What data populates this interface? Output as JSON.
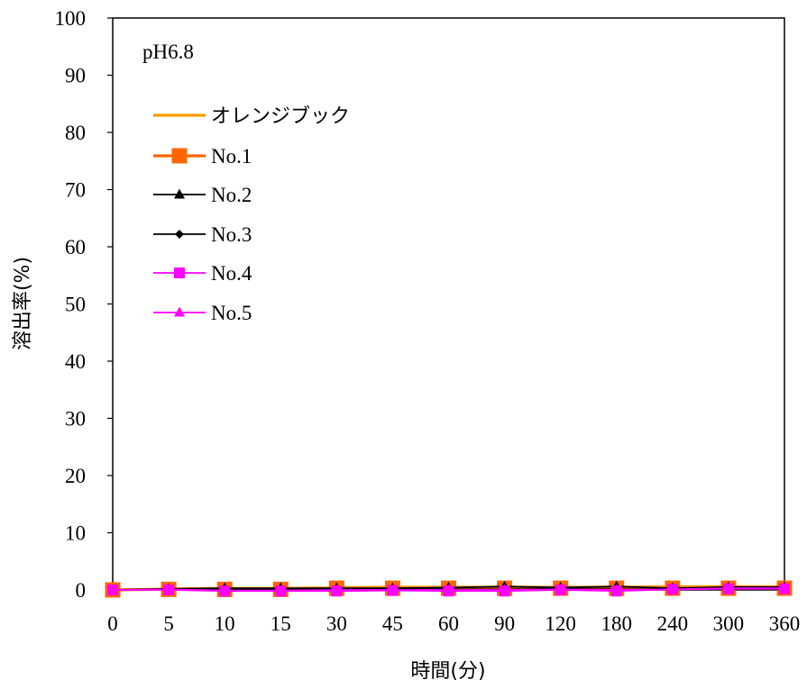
{
  "chart_data": {
    "type": "line",
    "annotation": "pH6.8",
    "xlabel": "時間(分)",
    "ylabel": "溶出率(%)",
    "categories": [
      "0",
      "5",
      "10",
      "15",
      "30",
      "45",
      "60",
      "90",
      "120",
      "180",
      "240",
      "300",
      "360"
    ],
    "y_ticks": [
      "0",
      "10",
      "20",
      "30",
      "40",
      "50",
      "60",
      "70",
      "80",
      "90",
      "100"
    ],
    "ylim": [
      0,
      100
    ],
    "grid": false,
    "legend_position": "top-left",
    "series": [
      {
        "name": "オレンジブック",
        "color": "#FF9900",
        "marker": "none",
        "values": [
          0,
          0.2,
          0.3,
          0.3,
          0.4,
          0.5,
          0.5,
          0.5,
          0.5,
          0.5,
          0.6,
          0.6,
          0.6
        ]
      },
      {
        "name": "No.1",
        "color": "#FF6600",
        "marker": "square-large",
        "values": [
          0,
          0.1,
          0.1,
          0.1,
          0.3,
          0.3,
          0.3,
          0.3,
          0.3,
          0.3,
          0.3,
          0.3,
          0.3
        ]
      },
      {
        "name": "No.2",
        "color": "#000000",
        "marker": "triangle",
        "values": [
          0,
          0.2,
          0.3,
          0.3,
          0.3,
          0.3,
          0.4,
          0.6,
          0.4,
          0.6,
          0.3,
          0.5,
          0.5
        ]
      },
      {
        "name": "No.3",
        "color": "#000000",
        "marker": "diamond",
        "values": [
          0,
          0.1,
          0.1,
          0.1,
          0.1,
          0.2,
          0.1,
          0.1,
          0.2,
          0.1,
          0.1,
          0.1,
          0.1
        ]
      },
      {
        "name": "No.4",
        "color": "#FF00FF",
        "marker": "square",
        "values": [
          0,
          0,
          -0.2,
          -0.2,
          -0.2,
          -0.1,
          -0.2,
          -0.2,
          0,
          -0.2,
          0.1,
          0.2,
          0.2
        ]
      },
      {
        "name": "No.5",
        "color": "#FF00FF",
        "marker": "triangle",
        "values": [
          0,
          0.1,
          -0.1,
          -0.1,
          0,
          0,
          0,
          0,
          0.1,
          0,
          0.1,
          0.3,
          0.3
        ]
      }
    ]
  }
}
